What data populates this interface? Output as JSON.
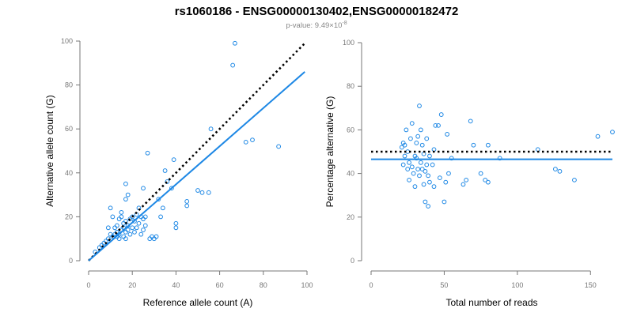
{
  "title": "rs1060186 - ENSG00000130402,ENSG00000182472",
  "subtitle": "p-value: 9.49×10",
  "subtitle_exp": "-8",
  "colors": {
    "points": "#1e88e5",
    "fit_line": "#1e88e5",
    "reference_line": "#000000",
    "axis": "#777777"
  },
  "chart_data": [
    {
      "type": "scatter",
      "xlabel": "Reference allele count (A)",
      "ylabel": "Alternative allele count (G)",
      "xlim": [
        0,
        100
      ],
      "ylim": [
        0,
        100
      ],
      "xticks": [
        0,
        20,
        40,
        60,
        80,
        100
      ],
      "yticks": [
        0,
        20,
        40,
        60,
        80,
        100
      ],
      "grid": false,
      "points": [
        [
          3,
          4
        ],
        [
          5,
          6
        ],
        [
          6,
          7
        ],
        [
          7,
          8
        ],
        [
          8,
          9
        ],
        [
          9,
          10
        ],
        [
          9,
          15
        ],
        [
          10,
          24
        ],
        [
          10,
          12
        ],
        [
          11,
          11
        ],
        [
          11,
          20
        ],
        [
          12,
          12
        ],
        [
          12,
          15
        ],
        [
          13,
          11
        ],
        [
          13,
          13
        ],
        [
          13,
          16
        ],
        [
          14,
          10
        ],
        [
          14,
          12
        ],
        [
          14,
          19
        ],
        [
          15,
          14
        ],
        [
          15,
          20
        ],
        [
          15,
          22
        ],
        [
          16,
          11
        ],
        [
          16,
          15
        ],
        [
          16,
          17
        ],
        [
          17,
          10
        ],
        [
          17,
          13
        ],
        [
          17,
          18
        ],
        [
          17,
          28
        ],
        [
          17,
          35
        ],
        [
          18,
          14
        ],
        [
          18,
          16
        ],
        [
          18,
          30
        ],
        [
          19,
          12
        ],
        [
          19,
          19
        ],
        [
          20,
          15
        ],
        [
          20,
          20
        ],
        [
          21,
          13
        ],
        [
          21,
          18
        ],
        [
          22,
          15
        ],
        [
          22,
          21
        ],
        [
          23,
          24
        ],
        [
          23,
          17
        ],
        [
          24,
          12
        ],
        [
          24,
          20
        ],
        [
          25,
          33
        ],
        [
          25,
          14
        ],
        [
          25,
          19
        ],
        [
          26,
          16
        ],
        [
          26,
          20
        ],
        [
          27,
          49
        ],
        [
          28,
          10
        ],
        [
          29,
          11
        ],
        [
          30,
          10
        ],
        [
          31,
          11
        ],
        [
          32,
          28
        ],
        [
          33,
          20
        ],
        [
          34,
          24
        ],
        [
          35,
          41
        ],
        [
          36,
          36
        ],
        [
          38,
          33
        ],
        [
          39,
          46
        ],
        [
          40,
          15
        ],
        [
          40,
          17
        ],
        [
          45,
          25
        ],
        [
          45,
          27
        ],
        [
          50,
          32
        ],
        [
          52,
          31
        ],
        [
          55,
          31
        ],
        [
          56,
          60
        ],
        [
          66,
          89
        ],
        [
          67,
          99
        ],
        [
          72,
          54
        ],
        [
          75,
          55
        ],
        [
          87,
          52
        ]
      ],
      "reference_line": {
        "style": "dotted",
        "from": [
          0,
          0
        ],
        "to": [
          99,
          99
        ]
      },
      "fit_line": {
        "style": "solid",
        "from": [
          0,
          0
        ],
        "to": [
          99,
          86
        ]
      }
    },
    {
      "type": "scatter",
      "xlabel": "Total number of reads",
      "ylabel": "Percentage alternative (G)",
      "xlim": [
        0,
        165
      ],
      "ylim": [
        0,
        100
      ],
      "xticks": [
        0,
        50,
        100,
        150
      ],
      "yticks": [
        0,
        20,
        40,
        60,
        80,
        100
      ],
      "grid": false,
      "points": [
        [
          21,
          52
        ],
        [
          22,
          54
        ],
        [
          22,
          44
        ],
        [
          23,
          53
        ],
        [
          23,
          48
        ],
        [
          24,
          60
        ],
        [
          25,
          42
        ],
        [
          25,
          50
        ],
        [
          26,
          45
        ],
        [
          26,
          37
        ],
        [
          27,
          56
        ],
        [
          28,
          63
        ],
        [
          28,
          43
        ],
        [
          29,
          40
        ],
        [
          30,
          34
        ],
        [
          30,
          48
        ],
        [
          31,
          47
        ],
        [
          31,
          54
        ],
        [
          32,
          42
        ],
        [
          32,
          57
        ],
        [
          33,
          71
        ],
        [
          33,
          39
        ],
        [
          34,
          60
        ],
        [
          34,
          45
        ],
        [
          35,
          53
        ],
        [
          35,
          42
        ],
        [
          36,
          35
        ],
        [
          36,
          49
        ],
        [
          37,
          27
        ],
        [
          37,
          41
        ],
        [
          38,
          44
        ],
        [
          38,
          56
        ],
        [
          39,
          25
        ],
        [
          39,
          39
        ],
        [
          40,
          48
        ],
        [
          40,
          36
        ],
        [
          42,
          44
        ],
        [
          43,
          34
        ],
        [
          43,
          51
        ],
        [
          44,
          62
        ],
        [
          46,
          62
        ],
        [
          47,
          38
        ],
        [
          48,
          67
        ],
        [
          50,
          27
        ],
        [
          51,
          36
        ],
        [
          52,
          58
        ],
        [
          53,
          40
        ],
        [
          55,
          47
        ],
        [
          63,
          35
        ],
        [
          65,
          37
        ],
        [
          68,
          64
        ],
        [
          70,
          53
        ],
        [
          75,
          40
        ],
        [
          78,
          37
        ],
        [
          80,
          36
        ],
        [
          80,
          53
        ],
        [
          88,
          47
        ],
        [
          114,
          51
        ],
        [
          126,
          42
        ],
        [
          129,
          41
        ],
        [
          139,
          37
        ],
        [
          155,
          57
        ],
        [
          165,
          59
        ]
      ],
      "reference_line": {
        "style": "dotted",
        "y": 50,
        "x_range": [
          0,
          165
        ]
      },
      "fit_line": {
        "style": "solid",
        "y": 46.5,
        "x_range": [
          0,
          165
        ]
      }
    }
  ]
}
